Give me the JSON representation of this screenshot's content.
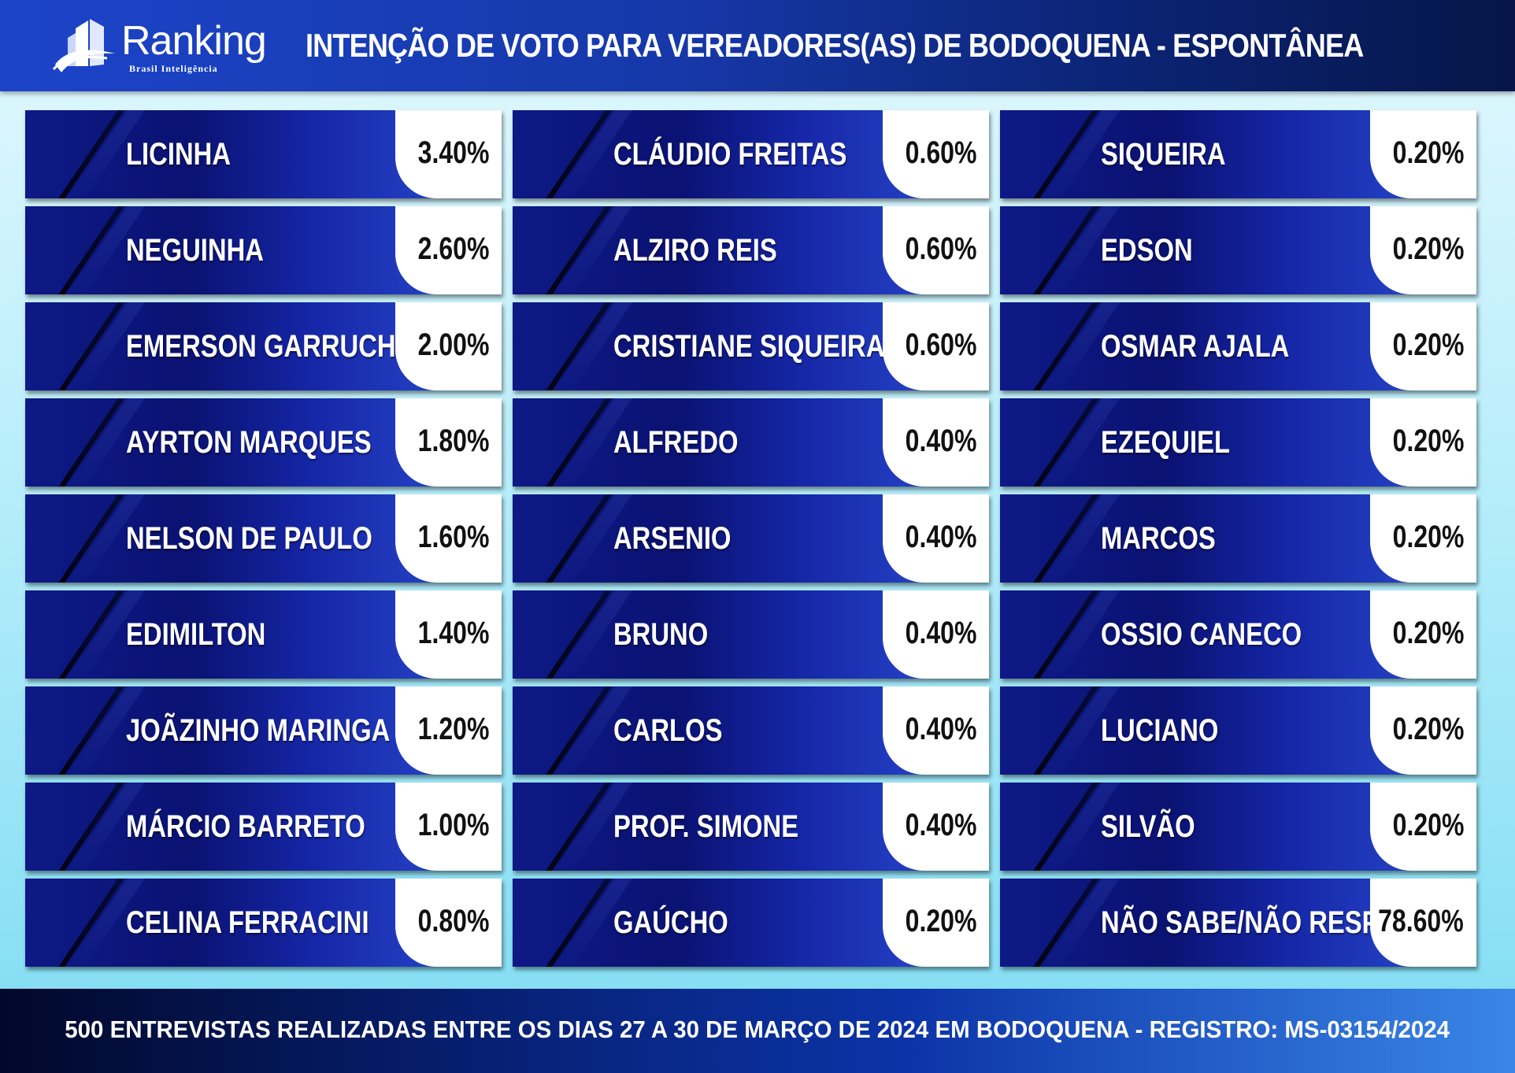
{
  "header": {
    "logo_text": "Ranking",
    "logo_subtext": "Brasil Inteligência",
    "title": "INTENÇÃO DE VOTO PARA VEREADORES(AS)  DE BODOQUENA - ESPONTÂNEA"
  },
  "columns": [
    [
      {
        "name": "LICINHA",
        "pct": "3.40%",
        "value": 3.4
      },
      {
        "name": "NEGUINHA",
        "pct": "2.60%",
        "value": 2.6
      },
      {
        "name": "EMERSON GARRUCHA",
        "pct": "2.00%",
        "value": 2.0
      },
      {
        "name": "AYRTON MARQUES",
        "pct": "1.80%",
        "value": 1.8
      },
      {
        "name": "NELSON DE PAULO",
        "pct": "1.60%",
        "value": 1.6
      },
      {
        "name": "EDIMILTON",
        "pct": "1.40%",
        "value": 1.4
      },
      {
        "name": "JOÃZINHO MARINGA",
        "pct": "1.20%",
        "value": 1.2
      },
      {
        "name": "MÁRCIO BARRETO",
        "pct": "1.00%",
        "value": 1.0
      },
      {
        "name": "CELINA FERRACINI",
        "pct": "0.80%",
        "value": 0.8
      }
    ],
    [
      {
        "name": "CLÁUDIO FREITAS",
        "pct": "0.60%",
        "value": 0.6
      },
      {
        "name": "ALZIRO REIS",
        "pct": "0.60%",
        "value": 0.6
      },
      {
        "name": "CRISTIANE SIQUEIRA",
        "pct": "0.60%",
        "value": 0.6
      },
      {
        "name": "ALFREDO",
        "pct": "0.40%",
        "value": 0.4
      },
      {
        "name": "ARSENIO",
        "pct": "0.40%",
        "value": 0.4
      },
      {
        "name": "BRUNO",
        "pct": "0.40%",
        "value": 0.4
      },
      {
        "name": "CARLOS",
        "pct": "0.40%",
        "value": 0.4
      },
      {
        "name": "PROF. SIMONE",
        "pct": "0.40%",
        "value": 0.4
      },
      {
        "name": "GAÚCHO",
        "pct": "0.20%",
        "value": 0.2
      }
    ],
    [
      {
        "name": "SIQUEIRA",
        "pct": "0.20%",
        "value": 0.2
      },
      {
        "name": "EDSON",
        "pct": "0.20%",
        "value": 0.2
      },
      {
        "name": "OSMAR AJALA",
        "pct": "0.20%",
        "value": 0.2
      },
      {
        "name": "EZEQUIEL",
        "pct": "0.20%",
        "value": 0.2
      },
      {
        "name": "MARCOS",
        "pct": "0.20%",
        "value": 0.2
      },
      {
        "name": "OSSIO CANECO",
        "pct": "0.20%",
        "value": 0.2
      },
      {
        "name": "LUCIANO",
        "pct": "0.20%",
        "value": 0.2
      },
      {
        "name": "SILVÃO",
        "pct": "0.20%",
        "value": 0.2
      },
      {
        "name": "NÃO SABE/NÃO RESP.",
        "pct": "78.60%",
        "value": 78.6
      }
    ]
  ],
  "footer": {
    "text": "500 ENTREVISTAS REALIZADAS ENTRE OS DIAS 27 A 30 DE MARÇO DE 2024 EM BODOQUENA - REGISTRO: MS-03154/2024"
  },
  "colors": {
    "row_blue": "#0e1986",
    "header_blue": "#1c44c9",
    "percent_box": "#ffffff",
    "background": "#b2ecfa"
  },
  "icons": {
    "logo": "ranking-building-swoosh-icon"
  }
}
